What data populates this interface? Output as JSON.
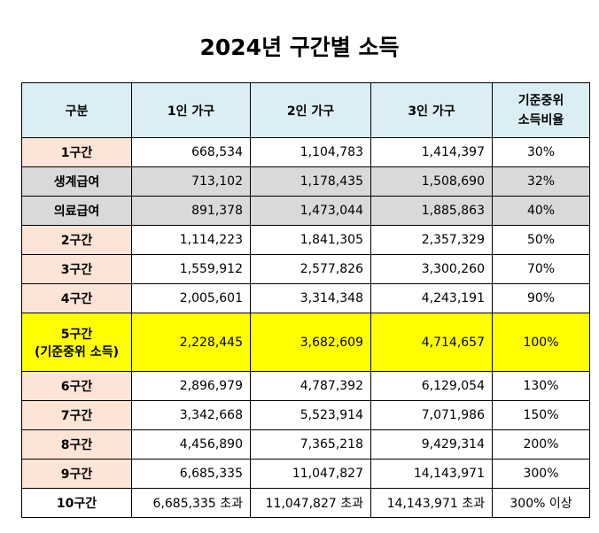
{
  "title": "2024년 구간별 소득",
  "headers": {
    "category": "구분",
    "one": "1인 가구",
    "two": "2인 가구",
    "three": "3인 가구",
    "ratio_line1": "기준중위",
    "ratio_line2": "소득비율"
  },
  "rows": [
    {
      "label": "1구간",
      "label2": "",
      "one": "668,534",
      "two": "1,104,783",
      "three": "1,414,397",
      "ratio": "30%"
    },
    {
      "label": "생계급여",
      "label2": "",
      "one": "713,102",
      "two": "1,178,435",
      "three": "1,508,690",
      "ratio": "32%"
    },
    {
      "label": "의료급여",
      "label2": "",
      "one": "891,378",
      "two": "1,473,044",
      "three": "1,885,863",
      "ratio": "40%"
    },
    {
      "label": "2구간",
      "label2": "",
      "one": "1,114,223",
      "two": "1,841,305",
      "three": "2,357,329",
      "ratio": "50%"
    },
    {
      "label": "3구간",
      "label2": "",
      "one": "1,559,912",
      "two": "2,577,826",
      "three": "3,300,260",
      "ratio": "70%"
    },
    {
      "label": "4구간",
      "label2": "",
      "one": "2,005,601",
      "two": "3,314,348",
      "three": "4,243,191",
      "ratio": "90%"
    },
    {
      "label": "5구간",
      "label2": "(기준중위 소득)",
      "one": "2,228,445",
      "two": "3,682,609",
      "three": "4,714,657",
      "ratio": "100%"
    },
    {
      "label": "6구간",
      "label2": "",
      "one": "2,896,979",
      "two": "4,787,392",
      "three": "6,129,054",
      "ratio": "130%"
    },
    {
      "label": "7구간",
      "label2": "",
      "one": "3,342,668",
      "two": "5,523,914",
      "three": "7,071,986",
      "ratio": "150%"
    },
    {
      "label": "8구간",
      "label2": "",
      "one": "4,456,890",
      "two": "7,365,218",
      "three": "9,429,314",
      "ratio": "200%"
    },
    {
      "label": "9구간",
      "label2": "",
      "one": "6,685,335",
      "two": "11,047,827",
      "three": "14,143,971",
      "ratio": "300%"
    },
    {
      "label": "10구간",
      "label2": "",
      "one": "6,685,335 초과",
      "two": "11,047,827 초과",
      "three": "14,143,971 초과",
      "ratio": "300% 이상"
    }
  ]
}
